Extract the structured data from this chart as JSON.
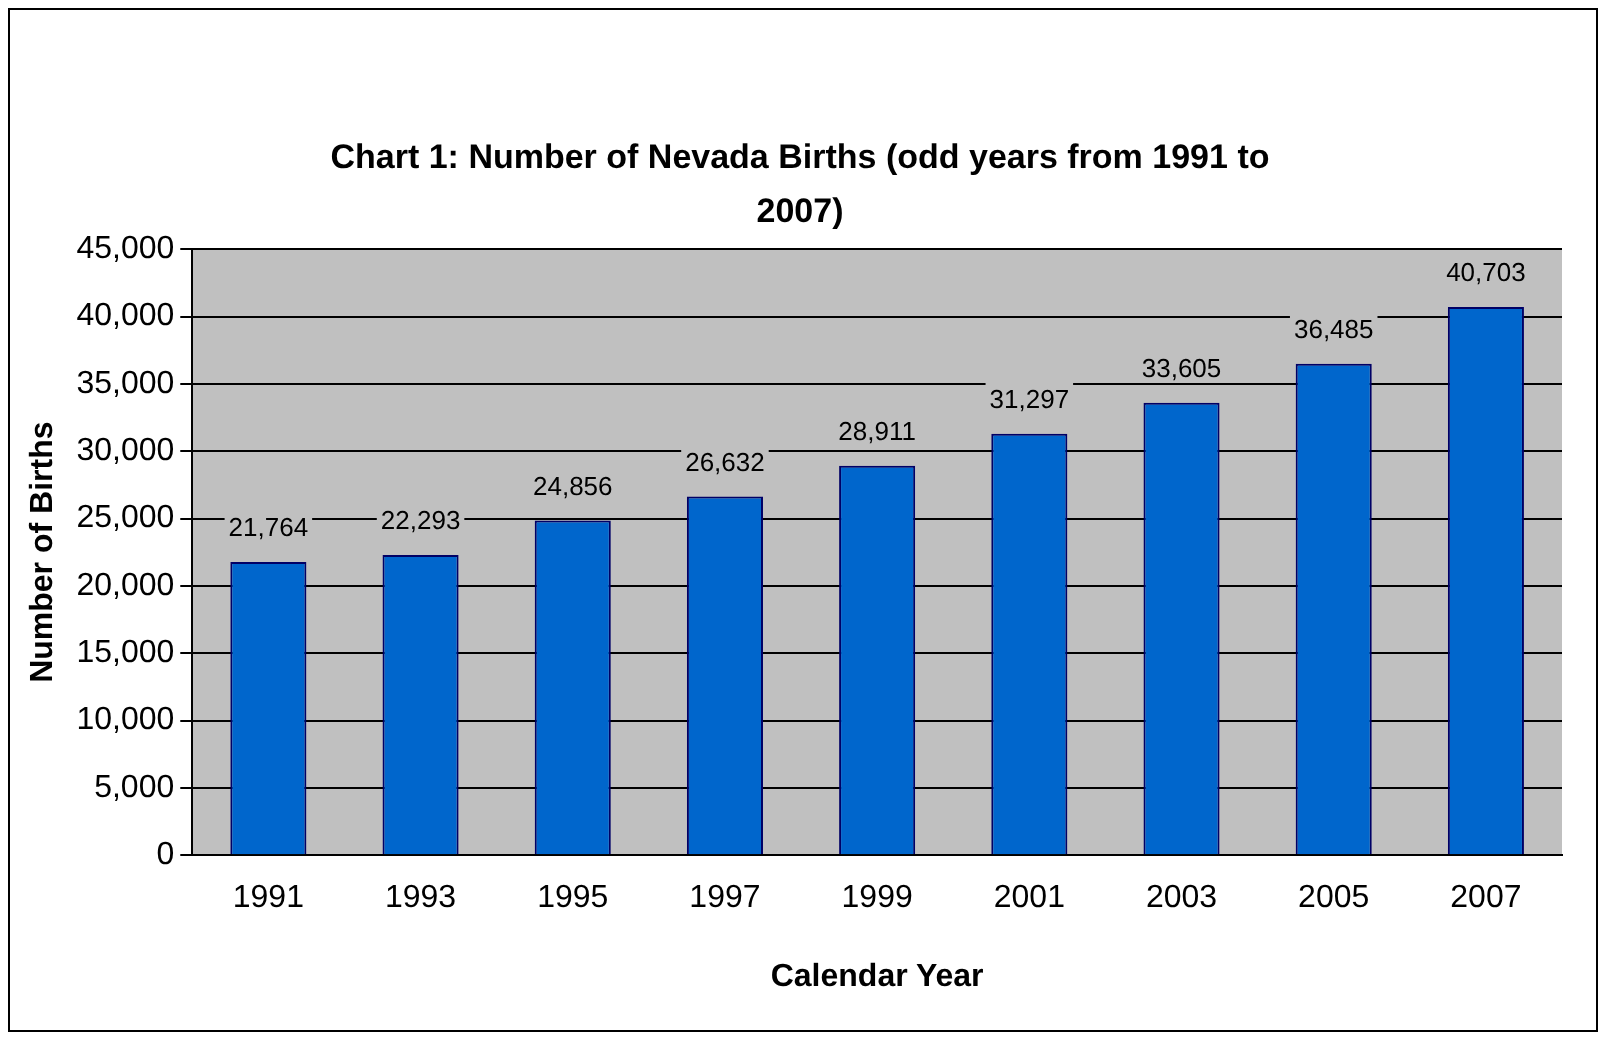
{
  "chart_data": {
    "type": "bar",
    "title": "Chart 1: Number of Nevada Births (odd years from 1991 to 2007)",
    "xlabel": "Calendar Year",
    "ylabel": "Number of Births",
    "categories": [
      "1991",
      "1993",
      "1995",
      "1997",
      "1999",
      "2001",
      "2003",
      "2005",
      "2007"
    ],
    "values": [
      21764,
      22293,
      24856,
      26632,
      28911,
      31297,
      33605,
      36485,
      40703
    ],
    "value_labels": [
      "21,764",
      "22,293",
      "24,856",
      "26,632",
      "28,911",
      "31,297",
      "33,605",
      "36,485",
      "40,703"
    ],
    "color": "#0066cc",
    "ylim": [
      0,
      45000
    ],
    "yticks": [
      {
        "value": 0,
        "label": "0"
      },
      {
        "value": 5000,
        "label": "5,000"
      },
      {
        "value": 10000,
        "label": "10,000"
      },
      {
        "value": 15000,
        "label": "15,000"
      },
      {
        "value": 20000,
        "label": "20,000"
      },
      {
        "value": 25000,
        "label": "25,000"
      },
      {
        "value": 30000,
        "label": "30,000"
      },
      {
        "value": 35000,
        "label": "35,000"
      },
      {
        "value": 40000,
        "label": "40,000"
      },
      {
        "value": 45000,
        "label": "45,000"
      }
    ],
    "grid": "y",
    "legend": false
  }
}
